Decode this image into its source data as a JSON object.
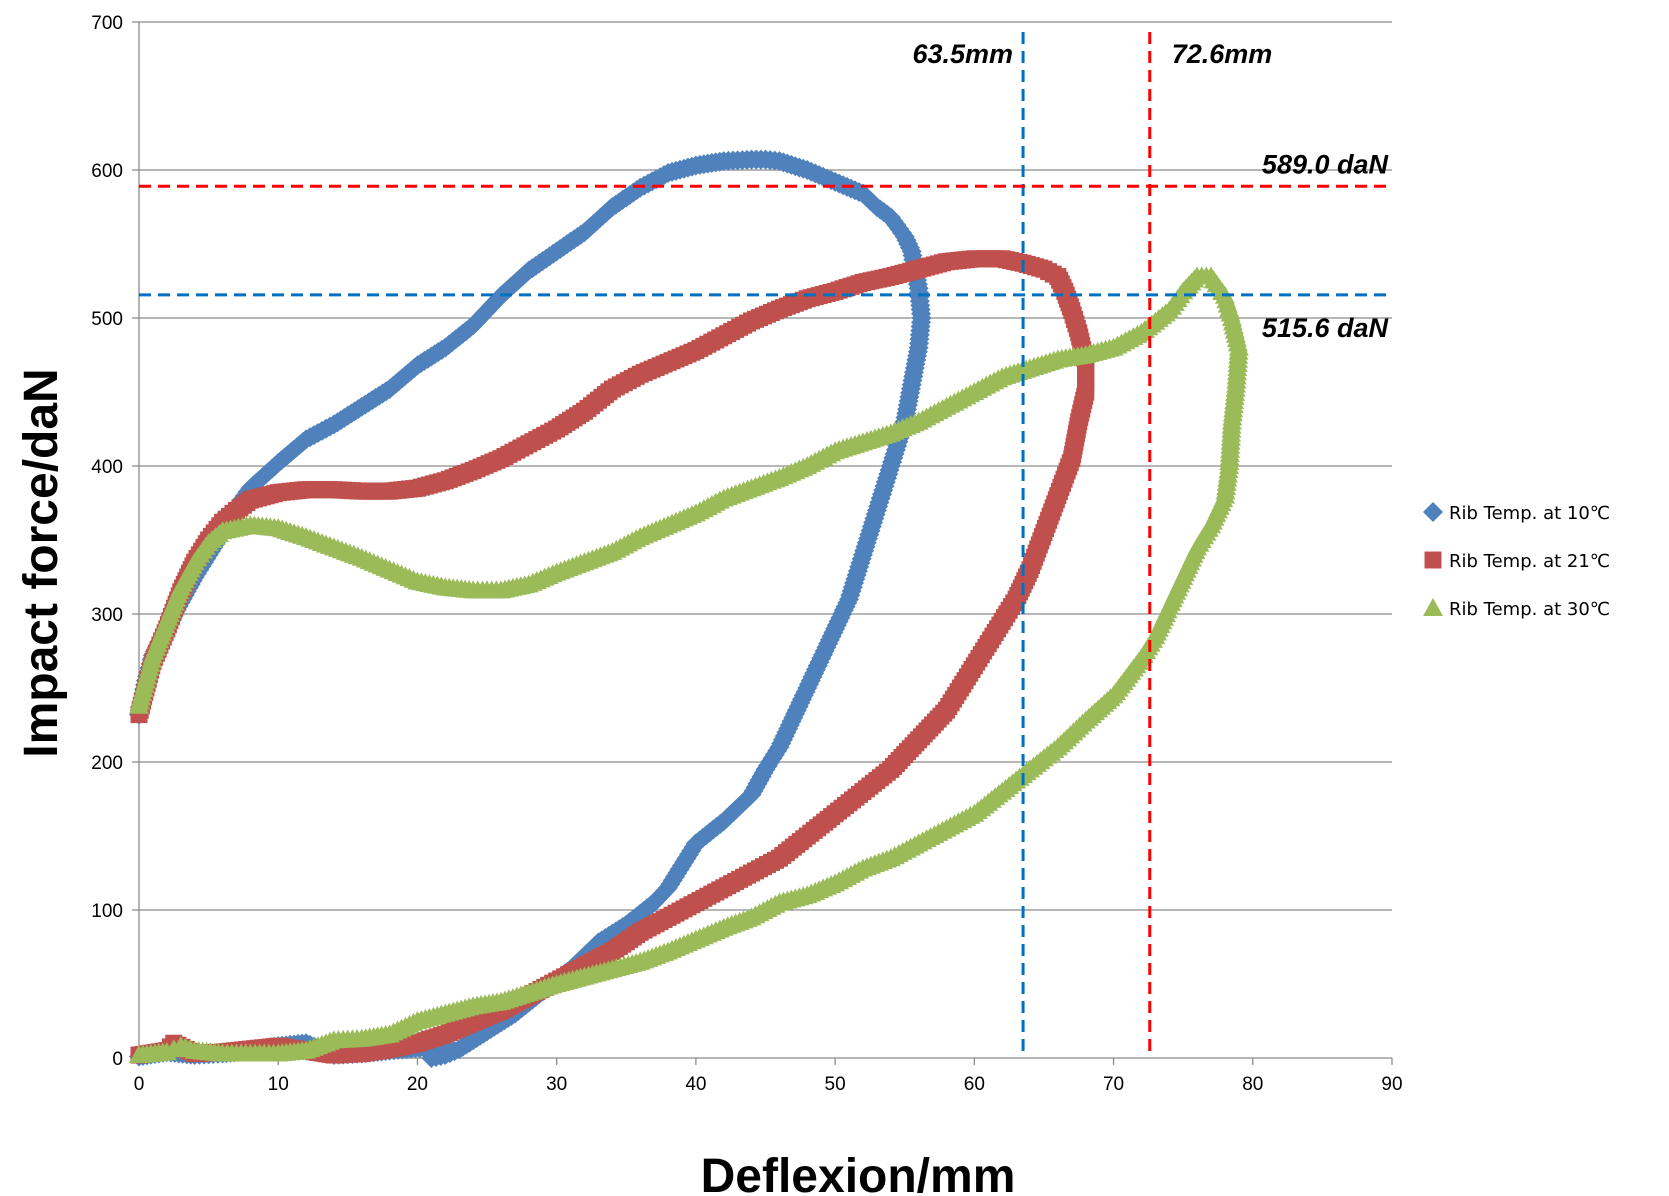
{
  "chart_data": {
    "type": "scatter",
    "title": "",
    "xlabel": "Deflexion/mm",
    "ylabel": "Impact force/daN",
    "xlim": [
      0,
      90
    ],
    "ylim": [
      0,
      700
    ],
    "x_ticks": [
      0,
      10,
      20,
      30,
      40,
      50,
      60,
      70,
      80,
      90
    ],
    "y_ticks": [
      0,
      100,
      200,
      300,
      400,
      500,
      600,
      700
    ],
    "grid": "horizontal",
    "legend_position": "right",
    "series": [
      {
        "name": "Rib Temp. at 10℃",
        "color": "#4f81bd",
        "marker": "diamond",
        "points": [
          [
            0,
            232
          ],
          [
            0.5,
            255
          ],
          [
            1,
            272
          ],
          [
            2,
            290
          ],
          [
            3,
            308
          ],
          [
            4,
            325
          ],
          [
            5,
            340
          ],
          [
            6,
            355
          ],
          [
            7,
            372
          ],
          [
            8,
            385
          ],
          [
            10,
            402
          ],
          [
            12,
            418
          ],
          [
            14,
            428
          ],
          [
            16,
            440
          ],
          [
            18,
            452
          ],
          [
            20,
            468
          ],
          [
            22,
            480
          ],
          [
            24,
            495
          ],
          [
            26,
            515
          ],
          [
            28,
            532
          ],
          [
            30,
            545
          ],
          [
            32,
            558
          ],
          [
            34,
            575
          ],
          [
            36,
            588
          ],
          [
            38,
            598
          ],
          [
            40,
            603
          ],
          [
            42,
            606
          ],
          [
            44,
            607
          ],
          [
            45,
            607
          ],
          [
            46,
            606
          ],
          [
            48,
            600
          ],
          [
            50,
            592
          ],
          [
            52,
            584
          ],
          [
            53,
            575
          ],
          [
            54,
            568
          ],
          [
            55,
            555
          ],
          [
            55.5,
            545
          ],
          [
            56,
            520
          ],
          [
            56.2,
            500
          ],
          [
            56,
            480
          ],
          [
            55.5,
            455
          ],
          [
            55,
            430
          ],
          [
            54,
            400
          ],
          [
            53,
            370
          ],
          [
            52,
            340
          ],
          [
            51,
            310
          ],
          [
            50,
            290
          ],
          [
            49,
            270
          ],
          [
            48,
            250
          ],
          [
            47,
            230
          ],
          [
            46,
            210
          ],
          [
            45,
            195
          ],
          [
            44,
            178
          ],
          [
            42,
            160
          ],
          [
            40,
            145
          ],
          [
            39,
            130
          ],
          [
            38,
            115
          ],
          [
            37,
            105
          ],
          [
            35,
            90
          ],
          [
            33,
            78
          ],
          [
            31,
            60
          ],
          [
            29,
            45
          ],
          [
            27,
            30
          ],
          [
            25,
            18
          ],
          [
            24,
            12
          ],
          [
            23,
            6
          ],
          [
            22,
            2
          ],
          [
            21,
            0
          ],
          [
            21.5,
            4
          ],
          [
            22,
            8
          ],
          [
            18,
            5
          ],
          [
            16,
            3
          ],
          [
            14,
            2
          ],
          [
            12,
            10
          ],
          [
            10,
            8
          ],
          [
            8,
            5
          ],
          [
            6,
            3
          ],
          [
            4,
            2
          ],
          [
            2,
            4
          ],
          [
            0,
            1
          ]
        ]
      },
      {
        "name": "Rib Temp. at 21℃",
        "color": "#c0504d",
        "marker": "square",
        "points": [
          [
            0,
            232
          ],
          [
            0.5,
            250
          ],
          [
            1,
            268
          ],
          [
            2,
            290
          ],
          [
            3,
            315
          ],
          [
            4,
            335
          ],
          [
            5,
            350
          ],
          [
            6,
            362
          ],
          [
            7,
            370
          ],
          [
            8,
            377
          ],
          [
            10,
            382
          ],
          [
            12,
            384
          ],
          [
            14,
            384
          ],
          [
            16,
            383
          ],
          [
            18,
            383
          ],
          [
            20,
            385
          ],
          [
            22,
            390
          ],
          [
            24,
            397
          ],
          [
            26,
            405
          ],
          [
            28,
            415
          ],
          [
            30,
            425
          ],
          [
            32,
            437
          ],
          [
            34,
            452
          ],
          [
            36,
            462
          ],
          [
            38,
            470
          ],
          [
            40,
            478
          ],
          [
            42,
            488
          ],
          [
            44,
            498
          ],
          [
            46,
            506
          ],
          [
            48,
            513
          ],
          [
            50,
            518
          ],
          [
            52,
            524
          ],
          [
            54,
            528
          ],
          [
            56,
            533
          ],
          [
            58,
            538
          ],
          [
            60,
            540
          ],
          [
            62,
            540
          ],
          [
            63.5,
            537
          ],
          [
            65,
            533
          ],
          [
            66,
            528
          ],
          [
            66.5,
            518
          ],
          [
            67,
            505
          ],
          [
            67.5,
            490
          ],
          [
            68,
            470
          ],
          [
            68,
            450
          ],
          [
            67.5,
            430
          ],
          [
            67,
            405
          ],
          [
            66,
            380
          ],
          [
            65,
            355
          ],
          [
            64,
            330
          ],
          [
            63,
            310
          ],
          [
            62,
            295
          ],
          [
            61,
            280
          ],
          [
            60,
            265
          ],
          [
            59,
            250
          ],
          [
            58,
            235
          ],
          [
            57,
            225
          ],
          [
            56,
            215
          ],
          [
            55,
            205
          ],
          [
            54,
            195
          ],
          [
            52,
            180
          ],
          [
            50,
            165
          ],
          [
            48,
            150
          ],
          [
            46,
            135
          ],
          [
            44,
            125
          ],
          [
            42,
            115
          ],
          [
            40,
            105
          ],
          [
            38,
            95
          ],
          [
            36,
            85
          ],
          [
            34,
            72
          ],
          [
            32,
            62
          ],
          [
            30,
            52
          ],
          [
            28,
            42
          ],
          [
            26,
            32
          ],
          [
            24,
            24
          ],
          [
            22,
            16
          ],
          [
            20,
            10
          ],
          [
            18,
            6
          ],
          [
            16,
            3
          ],
          [
            14,
            2
          ],
          [
            12,
            5
          ],
          [
            10,
            8
          ],
          [
            8,
            6
          ],
          [
            6,
            4
          ],
          [
            4,
            3
          ],
          [
            2.5,
            10
          ],
          [
            2,
            5
          ],
          [
            0,
            2
          ]
        ]
      },
      {
        "name": "Rib Temp. at 30℃",
        "color": "#9bbb59",
        "marker": "triangle",
        "points": [
          [
            0,
            238
          ],
          [
            0.5,
            255
          ],
          [
            1,
            272
          ],
          [
            2,
            295
          ],
          [
            3,
            318
          ],
          [
            4,
            335
          ],
          [
            5,
            348
          ],
          [
            6,
            356
          ],
          [
            8,
            360
          ],
          [
            10,
            358
          ],
          [
            12,
            352
          ],
          [
            14,
            345
          ],
          [
            16,
            338
          ],
          [
            18,
            330
          ],
          [
            20,
            322
          ],
          [
            22,
            318
          ],
          [
            24,
            316
          ],
          [
            26,
            316
          ],
          [
            28,
            320
          ],
          [
            30,
            328
          ],
          [
            32,
            335
          ],
          [
            34,
            342
          ],
          [
            36,
            352
          ],
          [
            38,
            360
          ],
          [
            40,
            368
          ],
          [
            42,
            378
          ],
          [
            44,
            385
          ],
          [
            46,
            392
          ],
          [
            48,
            400
          ],
          [
            50,
            410
          ],
          [
            52,
            416
          ],
          [
            54,
            422
          ],
          [
            56,
            430
          ],
          [
            58,
            440
          ],
          [
            60,
            450
          ],
          [
            62,
            460
          ],
          [
            64,
            466
          ],
          [
            66,
            472
          ],
          [
            68,
            475
          ],
          [
            70,
            480
          ],
          [
            72,
            490
          ],
          [
            74,
            505
          ],
          [
            75,
            518
          ],
          [
            76,
            528
          ],
          [
            77,
            528
          ],
          [
            78,
            515
          ],
          [
            78.5,
            500
          ],
          [
            79,
            480
          ],
          [
            78.8,
            455
          ],
          [
            78.5,
            430
          ],
          [
            78.3,
            400
          ],
          [
            78,
            380
          ],
          [
            77,
            360
          ],
          [
            76,
            345
          ],
          [
            75,
            325
          ],
          [
            74,
            305
          ],
          [
            73,
            285
          ],
          [
            72,
            270
          ],
          [
            70,
            245
          ],
          [
            68,
            228
          ],
          [
            66,
            210
          ],
          [
            64,
            195
          ],
          [
            62,
            180
          ],
          [
            60,
            165
          ],
          [
            58,
            155
          ],
          [
            56,
            145
          ],
          [
            54,
            135
          ],
          [
            52,
            128
          ],
          [
            50,
            118
          ],
          [
            48,
            110
          ],
          [
            46,
            105
          ],
          [
            44,
            95
          ],
          [
            42,
            88
          ],
          [
            40,
            80
          ],
          [
            38,
            72
          ],
          [
            36,
            65
          ],
          [
            34,
            60
          ],
          [
            32,
            55
          ],
          [
            30,
            50
          ],
          [
            28,
            44
          ],
          [
            26,
            38
          ],
          [
            24,
            35
          ],
          [
            22,
            30
          ],
          [
            20,
            25
          ],
          [
            18,
            16
          ],
          [
            16,
            13
          ],
          [
            14,
            12
          ],
          [
            12,
            5
          ],
          [
            10,
            3
          ],
          [
            8,
            3
          ],
          [
            6,
            3
          ],
          [
            4,
            5
          ],
          [
            3,
            8
          ],
          [
            2.5,
            6
          ],
          [
            2,
            4
          ],
          [
            0,
            2
          ]
        ]
      }
    ],
    "reference_lines": [
      {
        "orientation": "vertical",
        "value": 63.5,
        "label": "63.5mm",
        "color": "#0070c0"
      },
      {
        "orientation": "vertical",
        "value": 72.6,
        "label": "72.6mm",
        "color": "#ff0000"
      },
      {
        "orientation": "horizontal",
        "value": 589.0,
        "label": "589.0 daN",
        "color": "#ff0000"
      },
      {
        "orientation": "horizontal",
        "value": 515.6,
        "label": "515.6 daN",
        "color": "#0070c0"
      }
    ]
  }
}
